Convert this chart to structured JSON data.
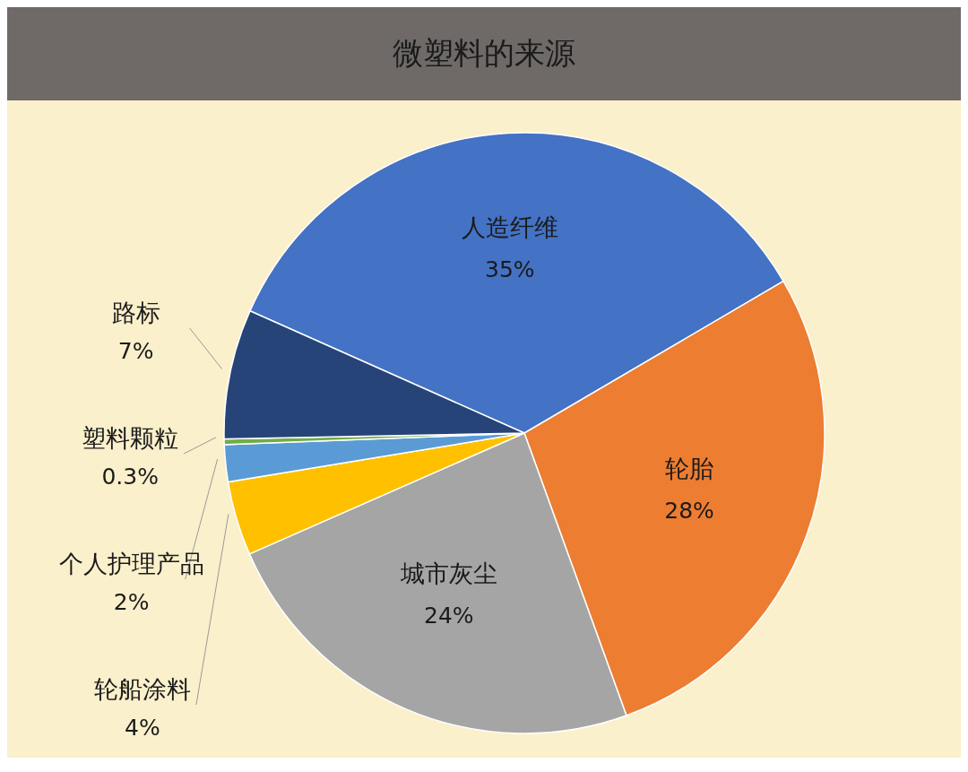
{
  "chart_data": {
    "type": "pie",
    "title": "微塑料的来源",
    "categories": [
      "人造纤维",
      "轮胎",
      "城市灰尘",
      "轮船涂料",
      "个人护理产品",
      "塑料颗粒",
      "路标"
    ],
    "values": [
      35,
      28,
      24,
      4,
      2,
      0.3,
      7
    ],
    "value_labels": [
      "35%",
      "28%",
      "24%",
      "4%",
      "2%",
      "0.3%",
      "7%"
    ],
    "colors": [
      "#4472c4",
      "#ed7d31",
      "#a5a5a5",
      "#ffc000",
      "#5b9bd5",
      "#70ad47",
      "#264478"
    ],
    "legend": false
  }
}
